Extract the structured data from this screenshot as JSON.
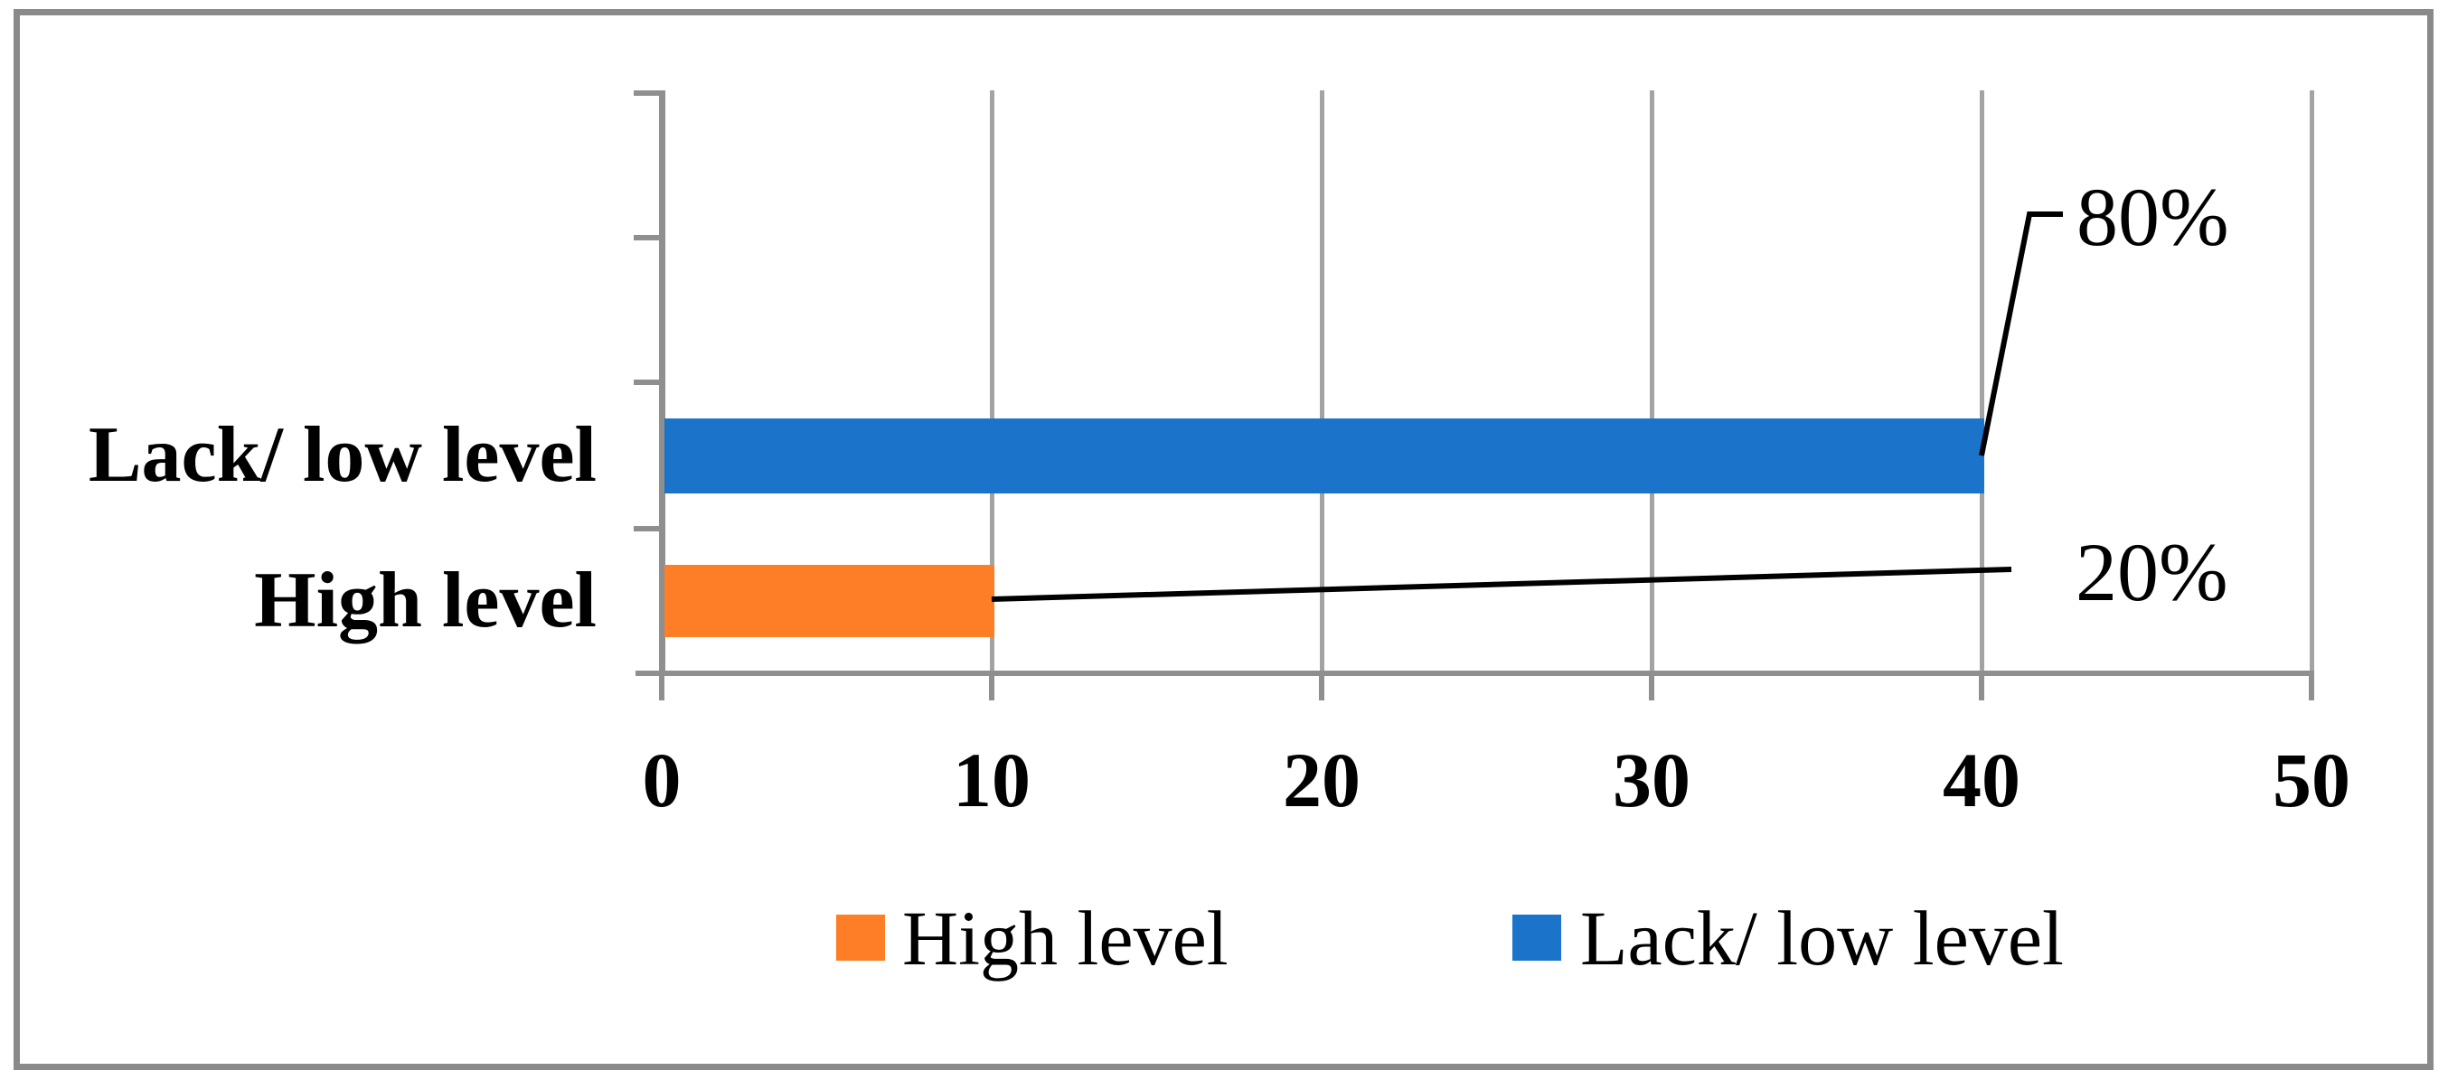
{
  "chart_data": {
    "type": "bar",
    "orientation": "horizontal",
    "title": "",
    "xlabel": "",
    "ylabel": "",
    "categories": [
      "Lack/ low level",
      "High level"
    ],
    "series": [
      {
        "name": "Lack/ low level",
        "color": "#1b74c9",
        "value": 40,
        "data_label": "80%"
      },
      {
        "name": "High level",
        "color": "#fd7e27",
        "value": 10,
        "data_label": "20%"
      }
    ],
    "xlim": [
      0,
      50
    ],
    "x_tick_labels": [
      "0",
      "10",
      "20",
      "30",
      "40",
      "50"
    ],
    "grid": "vertical-major-gridlines",
    "legend_position": "bottom",
    "legend_entries": [
      {
        "label": "High level",
        "color": "#fd7e27"
      },
      {
        "label": "Lack/ low level",
        "color": "#1b74c9"
      }
    ]
  },
  "styles": {
    "background": "#ffffff",
    "border_color": "#8a8a8a",
    "axis_color": "#8f8f8f",
    "gridline_color": "#a3a3a3",
    "leader_line_color": "#000000"
  }
}
